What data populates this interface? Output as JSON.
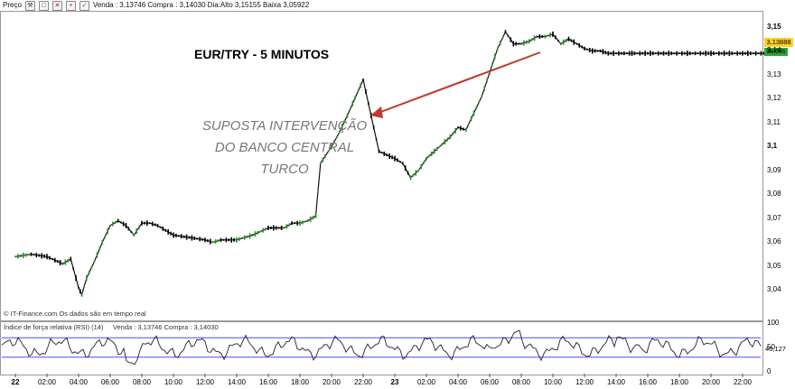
{
  "toolbar": {
    "label": "Preço",
    "quote": "Venda : 3,13746 Compra : 3,14030 Dia:Alto 3,15155 Baixa 3,05922",
    "icons": [
      "wrench-icon",
      "copy-icon",
      "close-icon",
      "add-icon",
      "checkbox-icon"
    ]
  },
  "chart": {
    "title": "EUR/TRY - 5 MINUTOS",
    "annotation": [
      "SUPOSTA INTERVENÇÃO",
      "DO BANCO CENTRAL",
      "TURCO"
    ],
    "watermark": "© IT-Finance.com  Os dados são em tempo real",
    "last_price": "3,13888",
    "countdown": "3m08s"
  },
  "rsi_panel": {
    "label": "Índice de força relativa (RSI) (14)",
    "quote": "Venda : 3,13746 Compra : 3,14030",
    "value": "45,127"
  },
  "colors": {
    "annotation_arrow": "#c0392b",
    "candle_up": "#2e8b2e",
    "candle_down": "#000000",
    "rsi_band": "#4a4aff",
    "rsi_overbought_fill": "#c05050",
    "rsi_oversold_fill": "#4040c0",
    "price_tag": "#ffd21f",
    "countdown_tag": "#2aa63b"
  },
  "chart_data": {
    "type": "line",
    "title": "EUR/TRY - 5 MINUTOS",
    "y_ticks": [
      "3,15",
      "3,14",
      "3,13",
      "3,12",
      "3,11",
      "3,1",
      "3,09",
      "3,08",
      "3,07",
      "3,06",
      "3,05",
      "3,04"
    ],
    "x_ticks": [
      "22",
      "02:00",
      "04:00",
      "06:00",
      "08:00",
      "10:00",
      "12:00",
      "14:00",
      "16:00",
      "18:00",
      "20:00",
      "22:00",
      "23",
      "02:00",
      "04:00",
      "06:00",
      "08:00",
      "10:00",
      "12:00",
      "14:00",
      "16:00",
      "18:00",
      "20:00",
      "22:00"
    ],
    "ylim": [
      3.033,
      3.156
    ],
    "series": [
      {
        "x": [
          0,
          1,
          2,
          3,
          3.5,
          4,
          4.2,
          4.5,
          5,
          5.5,
          6,
          6.5,
          7,
          7.5,
          8,
          8.5,
          9,
          10,
          11,
          12,
          12.5,
          13,
          14,
          15,
          16,
          17,
          17.5,
          18,
          18.5,
          19,
          19.3,
          19.6,
          20,
          20.5,
          21,
          22,
          23,
          24,
          24.5,
          25,
          25.5,
          26,
          26.5,
          27,
          27.5,
          28,
          28.5,
          29,
          29.5,
          30,
          30.5,
          31,
          31.5,
          32,
          32.5,
          33,
          33.5,
          34,
          34.5,
          35,
          35.5,
          36,
          36.5,
          37,
          37.5,
          38,
          38.5,
          39,
          40,
          41,
          42,
          43,
          44,
          45,
          46,
          47,
          48
        ],
        "y": [
          3.054,
          3.055,
          3.054,
          3.051,
          3.053,
          3.041,
          3.038,
          3.045,
          3.052,
          3.06,
          3.067,
          3.069,
          3.067,
          3.063,
          3.068,
          3.068,
          3.067,
          3.063,
          3.062,
          3.061,
          3.06,
          3.061,
          3.061,
          3.063,
          3.066,
          3.066,
          3.068,
          3.068,
          3.069,
          3.071,
          3.093,
          3.096,
          3.1,
          3.106,
          3.113,
          3.128,
          3.098,
          3.095,
          3.093,
          3.087,
          3.09,
          3.095,
          3.098,
          3.101,
          3.104,
          3.108,
          3.107,
          3.114,
          3.121,
          3.131,
          3.141,
          3.148,
          3.143,
          3.143,
          3.144,
          3.146,
          3.146,
          3.147,
          3.143,
          3.145,
          3.143,
          3.141,
          3.14,
          3.14,
          3.139,
          3.139,
          3.139,
          3.139,
          3.139,
          3.139,
          3.139,
          3.139,
          3.139,
          3.139,
          3.139,
          3.139,
          3.139
        ]
      }
    ],
    "rsi": {
      "ylim": [
        0,
        100
      ],
      "y_ticks": [
        "100",
        "50",
        "0"
      ],
      "bands": [
        70,
        30
      ],
      "value": 45.127
    }
  }
}
